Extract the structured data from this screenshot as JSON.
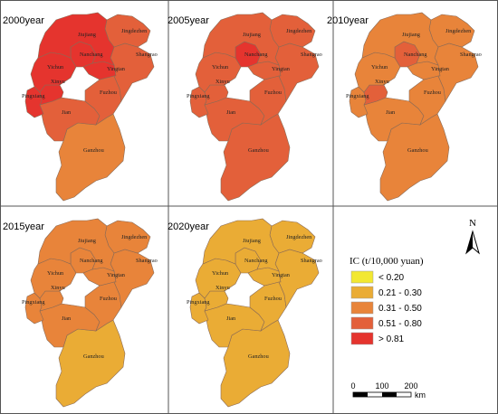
{
  "colors": {
    "c1": "#f2e832",
    "c2": "#eaac35",
    "c3": "#e8843a",
    "c4": "#e3603a",
    "c5": "#e5342e",
    "border": "#8a6a55",
    "panel_border": "#555555"
  },
  "panels": [
    {
      "title": "2000year",
      "regions": {
        "Jiujiang": "c5",
        "Jingdezhen": "c4",
        "Shangrao": "c4",
        "Nanchang": "c5",
        "Yingtan": "c5",
        "Yichun": "c5",
        "Xinyu": "c5",
        "Pingxiang": "c5",
        "Fuzhou": "c4",
        "Jian": "c4",
        "Ganzhou": "c3"
      }
    },
    {
      "title": "2005year",
      "regions": {
        "Jiujiang": "c4",
        "Jingdezhen": "c4",
        "Shangrao": "c4",
        "Nanchang": "c5",
        "Yingtan": "c4",
        "Yichun": "c4",
        "Xinyu": "c4",
        "Pingxiang": "c4",
        "Fuzhou": "c4",
        "Jian": "c4",
        "Ganzhou": "c4"
      }
    },
    {
      "title": "2010year",
      "regions": {
        "Jiujiang": "c3",
        "Jingdezhen": "c3",
        "Shangrao": "c3",
        "Nanchang": "c4",
        "Yingtan": "c3",
        "Yichun": "c3",
        "Xinyu": "c4",
        "Pingxiang": "c3",
        "Fuzhou": "c3",
        "Jian": "c3",
        "Ganzhou": "c3"
      }
    },
    {
      "title": "2015year",
      "regions": {
        "Jiujiang": "c3",
        "Jingdezhen": "c3",
        "Shangrao": "c3",
        "Nanchang": "c3",
        "Yingtan": "c3",
        "Yichun": "c3",
        "Xinyu": "c3",
        "Pingxiang": "c3",
        "Fuzhou": "c3",
        "Jian": "c3",
        "Ganzhou": "c2"
      }
    },
    {
      "title": "2020year",
      "regions": {
        "Jiujiang": "c2",
        "Jingdezhen": "c2",
        "Shangrao": "c2",
        "Nanchang": "c2",
        "Yingtan": "c2",
        "Yichun": "c2",
        "Xinyu": "c2",
        "Pingxiang": "c2",
        "Fuzhou": "c2",
        "Jian": "c2",
        "Ganzhou": "c2"
      }
    }
  ],
  "city_labels": {
    "Jiujiang": "Jiujiang",
    "Jingdezhen": "Jingdezhen",
    "Shangrao": "Shangrao",
    "Nanchang": "Nanchang",
    "Yingtan": "Yingtan",
    "Yichun": "Yichun",
    "Xinyu": "Xinyu",
    "Pingxiang": "Pingxiang",
    "Fuzhou": "Fuzhou",
    "Jian": "Jian",
    "Ganzhou": "Ganzhou"
  },
  "legend": {
    "title": "IC (t/10,000 yuan)",
    "items": [
      {
        "label": "< 0.20",
        "color_key": "c1"
      },
      {
        "label": "0.21 - 0.30",
        "color_key": "c2"
      },
      {
        "label": "0.31 - 0.50",
        "color_key": "c3"
      },
      {
        "label": "0.51 - 0.80",
        "color_key": "c4"
      },
      {
        "label": "> 0.81",
        "color_key": "c5"
      }
    ]
  },
  "north_arrow": {
    "label": "N"
  },
  "scale_bar": {
    "ticks": [
      "0",
      "100",
      "200"
    ],
    "unit": "km"
  }
}
